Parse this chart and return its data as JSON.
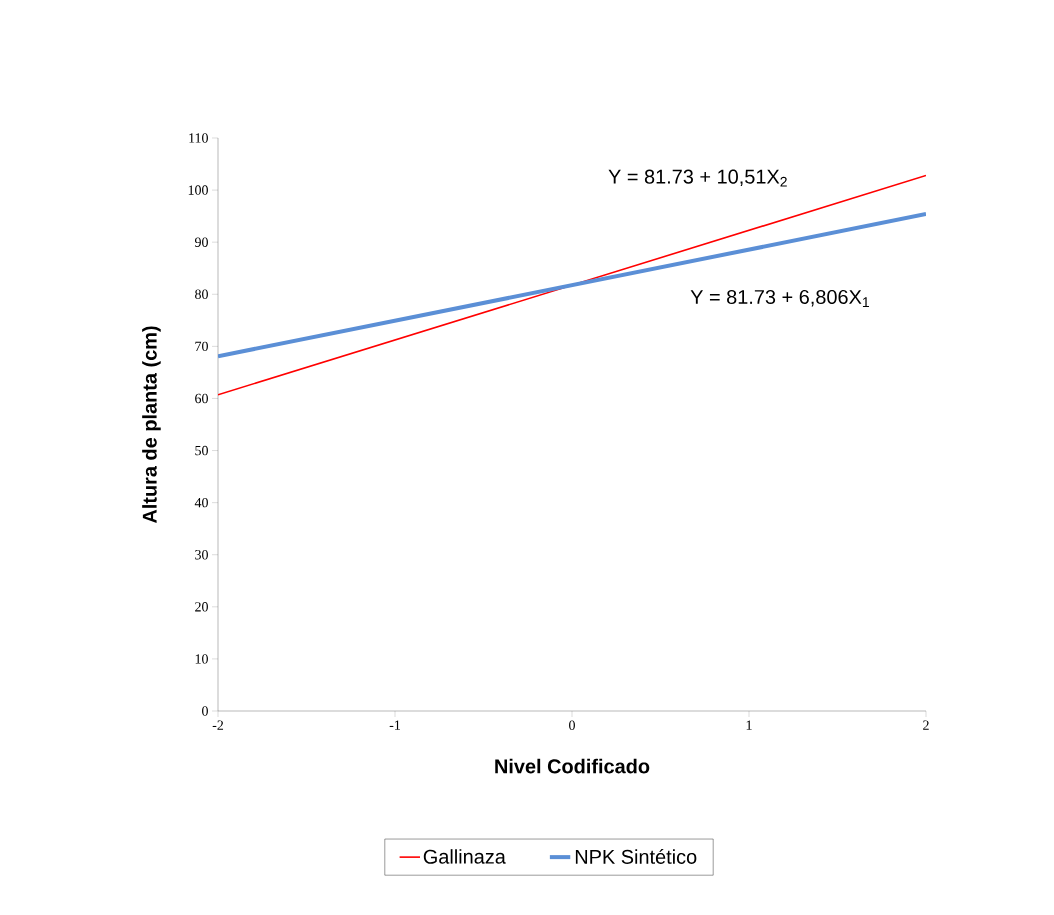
{
  "chart_data": {
    "type": "line",
    "xlabel": "Nivel Codificado",
    "ylabel": "Altura de planta (cm)",
    "x": [
      -2,
      2
    ],
    "series": [
      {
        "name": "Gallinaza",
        "color": "#ff0000",
        "values": [
          60.7,
          102.8
        ]
      },
      {
        "name": "NPK Sintético",
        "color": "#5b8fd6",
        "values": [
          68.1,
          95.4
        ]
      }
    ],
    "xlim": [
      -2,
      2
    ],
    "xticks": [
      -2,
      -1,
      0,
      1,
      2
    ],
    "ylim": [
      0,
      110
    ],
    "yticks": [
      0,
      10,
      20,
      30,
      40,
      50,
      60,
      70,
      80,
      90,
      100,
      110
    ],
    "grid": false,
    "legend": "bottom",
    "annotations": [
      "Y = 81.73 + 10,51X$_{2}$",
      "Y = 81.73 + 6,806X$_{1}$"
    ]
  }
}
